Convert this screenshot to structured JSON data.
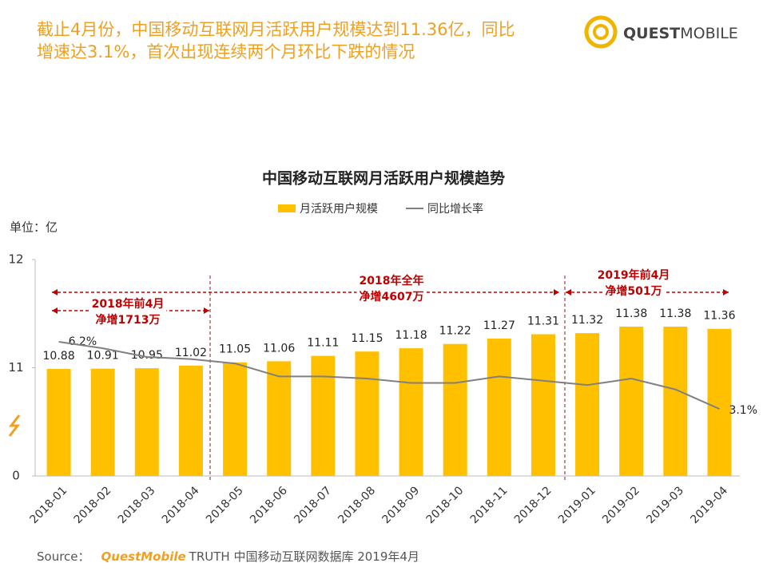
{
  "header": {
    "title_lines": [
      "截止4月份，中国移动互联网月活跃用户规模达到11.36亿，同比",
      "增速达3.1%，首次出现连续两个月环比下跌的情况"
    ],
    "logo": [
      "QUEST",
      "MOBILE"
    ]
  },
  "chart_data": {
    "type": "bar",
    "title": "中国移动互联网月活跃用户规模趋势",
    "unit_label": "单位：亿",
    "categories": [
      "2018-01",
      "2018-02",
      "2018-03",
      "2018-04",
      "2018-05",
      "2018-06",
      "2018-07",
      "2018-08",
      "2018-09",
      "2018-10",
      "2018-11",
      "2018-12",
      "2019-01",
      "2019-02",
      "2019-03",
      "2019-04"
    ],
    "series": [
      {
        "name": "月活跃用户规模",
        "type": "bar",
        "color": "#ffc000",
        "values": [
          10.88,
          10.91,
          10.95,
          11.02,
          11.05,
          11.06,
          11.11,
          11.15,
          11.18,
          11.22,
          11.27,
          11.31,
          11.32,
          11.38,
          11.38,
          11.36
        ]
      },
      {
        "name": "同比增长率",
        "type": "line",
        "axis": "y2",
        "color": "#808080",
        "values": [
          6.2,
          5.9,
          5.5,
          5.4,
          5.2,
          4.6,
          4.6,
          4.5,
          4.3,
          4.3,
          4.6,
          4.4,
          4.2,
          4.5,
          4.0,
          3.1
        ],
        "value_labels": [
          "6.2%",
          null,
          null,
          null,
          null,
          null,
          null,
          null,
          null,
          null,
          null,
          null,
          null,
          null,
          null,
          "3.1%"
        ]
      }
    ],
    "ylim": [
      0,
      12
    ],
    "yticks": [
      0,
      11,
      12
    ],
    "axis_break": true,
    "y2lim": [
      0,
      10
    ],
    "annotations": [
      {
        "lines": [
          "2018年前4月",
          "净增1713万"
        ]
      },
      {
        "lines": [
          "2018年全年",
          "净增4607万"
        ]
      },
      {
        "lines": [
          "2019年前4月",
          "净增501万"
        ]
      }
    ]
  },
  "source": {
    "label": "Source：",
    "brand": "QuestMobile",
    "text": "TRUTH 中国移动互联网数据库 2019年4月"
  }
}
